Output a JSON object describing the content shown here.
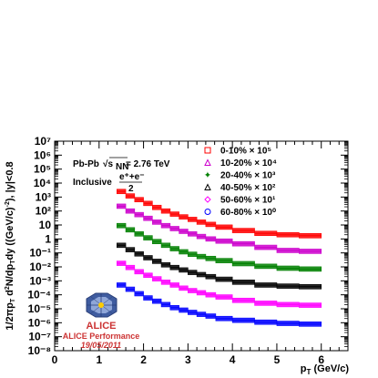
{
  "chart_data": {
    "type": "scatter",
    "xlabel": "p_T (GeV/c)",
    "ylabel": "1/2πp_T d²N/dp_T dy ((GeV/c)⁻²), |y|<0.8",
    "xlim": [
      0,
      6.6
    ],
    "ylim_log10": [
      -8,
      7
    ],
    "log_y": true,
    "grid": false,
    "legend_position": "top-right",
    "x_ticks": [
      "0",
      "1",
      "2",
      "3",
      "4",
      "5",
      "6"
    ],
    "y_ticks": [
      "10⁻⁸",
      "10⁻⁷",
      "10⁻⁶",
      "10⁻⁵",
      "10⁻⁴",
      "10⁻³",
      "10⁻²",
      "10⁻¹",
      "1",
      "10",
      "10²",
      "10³",
      "10⁴",
      "10⁵",
      "10⁶",
      "10⁷"
    ],
    "annotations": {
      "system": "Pb-Pb √s_NN = 2.76 TeV",
      "species_prefix": "Inclusive",
      "species_fraction_num": "e⁺+e⁻",
      "species_fraction_den": "2"
    },
    "x": [
      1.5,
      1.7,
      1.9,
      2.1,
      2.3,
      2.5,
      2.7,
      2.9,
      3.1,
      3.3,
      3.5,
      3.75,
      4.25,
      4.75,
      5.25,
      5.75
    ],
    "series": [
      {
        "name": "0-10% × 10⁵",
        "color": "#ff0000",
        "marker": "square",
        "values": [
          2500,
          1200,
          650,
          350,
          180,
          100,
          60,
          38,
          25,
          16,
          11,
          7,
          4,
          2.5,
          2,
          1.7
        ]
      },
      {
        "name": "10-20% × 10⁴",
        "color": "#cc00cc",
        "marker": "triangle",
        "values": [
          220,
          100,
          55,
          30,
          16,
          9,
          5.5,
          3.5,
          2.3,
          1.5,
          1,
          0.7,
          0.45,
          0.25,
          0.15,
          0.13
        ]
      },
      {
        "name": "20-40% × 10³",
        "color": "#008000",
        "marker": "star",
        "values": [
          9,
          4.5,
          2.3,
          1.2,
          0.65,
          0.35,
          0.2,
          0.12,
          0.08,
          0.055,
          0.04,
          0.028,
          0.017,
          0.011,
          0.008,
          0.007
        ]
      },
      {
        "name": "40-50% × 10²",
        "color": "#000000",
        "marker": "triangle",
        "values": [
          0.35,
          0.17,
          0.085,
          0.045,
          0.025,
          0.014,
          0.009,
          0.006,
          0.004,
          0.0028,
          0.002,
          0.0013,
          0.0008,
          0.0005,
          0.00042,
          0.00038
        ]
      },
      {
        "name": "50-60% × 10¹",
        "color": "#ff00ff",
        "marker": "diamond",
        "values": [
          0.018,
          0.009,
          0.0045,
          0.0025,
          0.0014,
          0.0008,
          0.0005,
          0.0003,
          0.0002,
          0.00014,
          0.0001,
          7e-05,
          4e-05,
          2.5e-05,
          2e-05,
          1.8e-05
        ]
      },
      {
        "name": "60-80% × 10⁰",
        "color": "#0000ff",
        "marker": "circle",
        "values": [
          0.0005,
          0.00025,
          0.00012,
          6e-05,
          3.5e-05,
          2e-05,
          1.2e-05,
          8e-06,
          5.5e-06,
          4e-06,
          3e-06,
          2e-06,
          1.5e-06,
          1.1e-06,
          9e-07,
          8e-07
        ]
      }
    ]
  },
  "logo": {
    "brand": "ALICE",
    "caption": "ALICE Performance",
    "date": "19/05/2011",
    "brand_color": "#cc3333"
  }
}
